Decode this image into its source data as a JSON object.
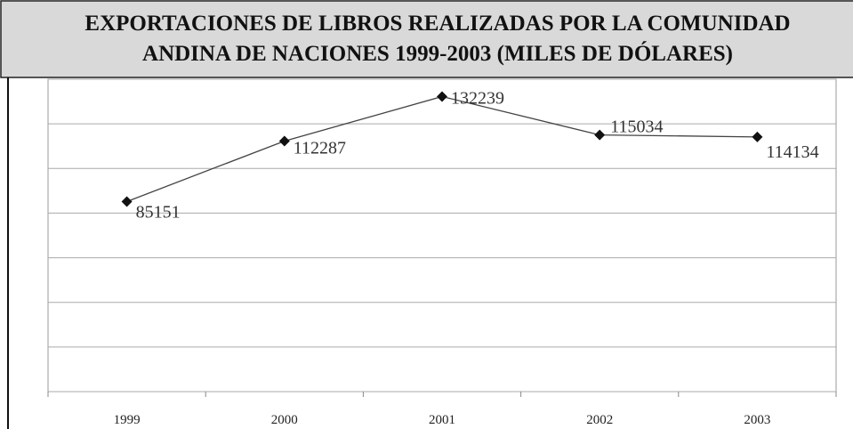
{
  "chart_data": {
    "type": "line",
    "title": [
      "EXPORTACIONES DE LIBROS REALIZADAS POR LA COMUNIDAD",
      "ANDINA DE NACIONES 1999-2003  (MILES DE DÓLARES)"
    ],
    "categories": [
      "1999",
      "2000",
      "2001",
      "2002",
      "2003"
    ],
    "series": [
      {
        "color": "#444444",
        "values": [
          85151,
          112287,
          132239,
          115034,
          114134
        ]
      }
    ],
    "ylim": [
      0,
      140000
    ],
    "yticks": [
      0,
      20000,
      40000,
      60000,
      80000,
      100000,
      120000,
      140000
    ],
    "grid": true
  }
}
